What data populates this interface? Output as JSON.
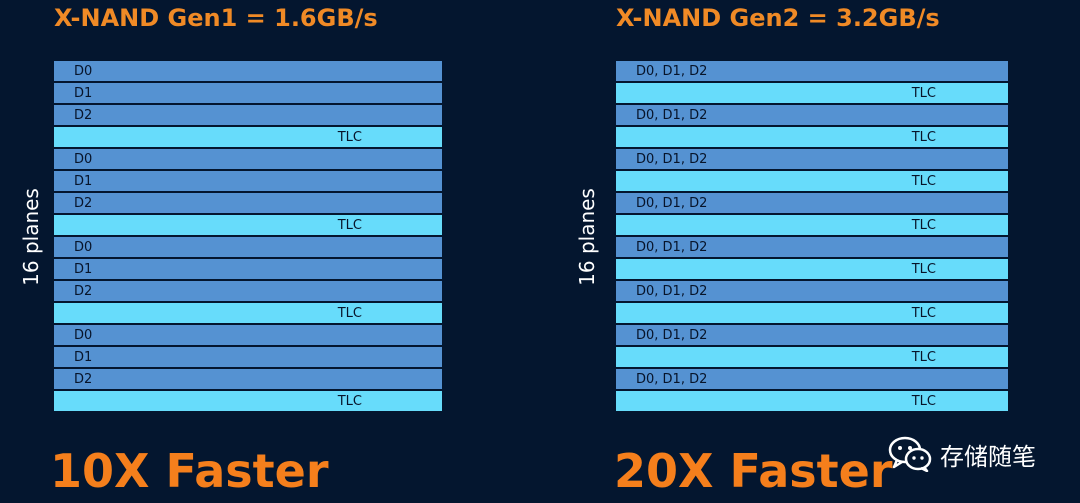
{
  "left": {
    "title": "X-NAND Gen1 = 1.6GB/s",
    "side_label": "16 planes",
    "rows": [
      {
        "kind": "d",
        "label": "D0"
      },
      {
        "kind": "d",
        "label": "D1"
      },
      {
        "kind": "d",
        "label": "D2"
      },
      {
        "kind": "t",
        "label": "TLC"
      },
      {
        "kind": "d",
        "label": "D0"
      },
      {
        "kind": "d",
        "label": "D1"
      },
      {
        "kind": "d",
        "label": "D2"
      },
      {
        "kind": "t",
        "label": "TLC"
      },
      {
        "kind": "d",
        "label": "D0"
      },
      {
        "kind": "d",
        "label": "D1"
      },
      {
        "kind": "d",
        "label": "D2"
      },
      {
        "kind": "t",
        "label": "TLC"
      },
      {
        "kind": "d",
        "label": "D0"
      },
      {
        "kind": "d",
        "label": "D1"
      },
      {
        "kind": "d",
        "label": "D2"
      },
      {
        "kind": "t",
        "label": "TLC"
      }
    ],
    "footer": "10X Faster"
  },
  "right": {
    "title": "X-NAND Gen2 = 3.2GB/s",
    "side_label": "16 planes",
    "rows": [
      {
        "kind": "d",
        "label": "D0, D1, D2"
      },
      {
        "kind": "t",
        "label": "TLC"
      },
      {
        "kind": "d",
        "label": "D0, D1, D2"
      },
      {
        "kind": "t",
        "label": "TLC"
      },
      {
        "kind": "d",
        "label": "D0, D1, D2"
      },
      {
        "kind": "t",
        "label": "TLC"
      },
      {
        "kind": "d",
        "label": "D0, D1, D2"
      },
      {
        "kind": "t",
        "label": "TLC"
      },
      {
        "kind": "d",
        "label": "D0, D1, D2"
      },
      {
        "kind": "t",
        "label": "TLC"
      },
      {
        "kind": "d",
        "label": "D0, D1, D2"
      },
      {
        "kind": "t",
        "label": "TLC"
      },
      {
        "kind": "d",
        "label": "D0, D1, D2"
      },
      {
        "kind": "t",
        "label": "TLC"
      },
      {
        "kind": "d",
        "label": "D0, D1, D2"
      },
      {
        "kind": "t",
        "label": "TLC"
      }
    ],
    "footer": "20X Faster"
  },
  "watermark": {
    "icon": "wechat-icon",
    "text": "存储随笔"
  },
  "colors": {
    "background": "#04162f",
    "title": "#f08a26",
    "footer": "#f57f1c",
    "data_row": "#5592d2",
    "tlc_row": "#67dcfb"
  }
}
